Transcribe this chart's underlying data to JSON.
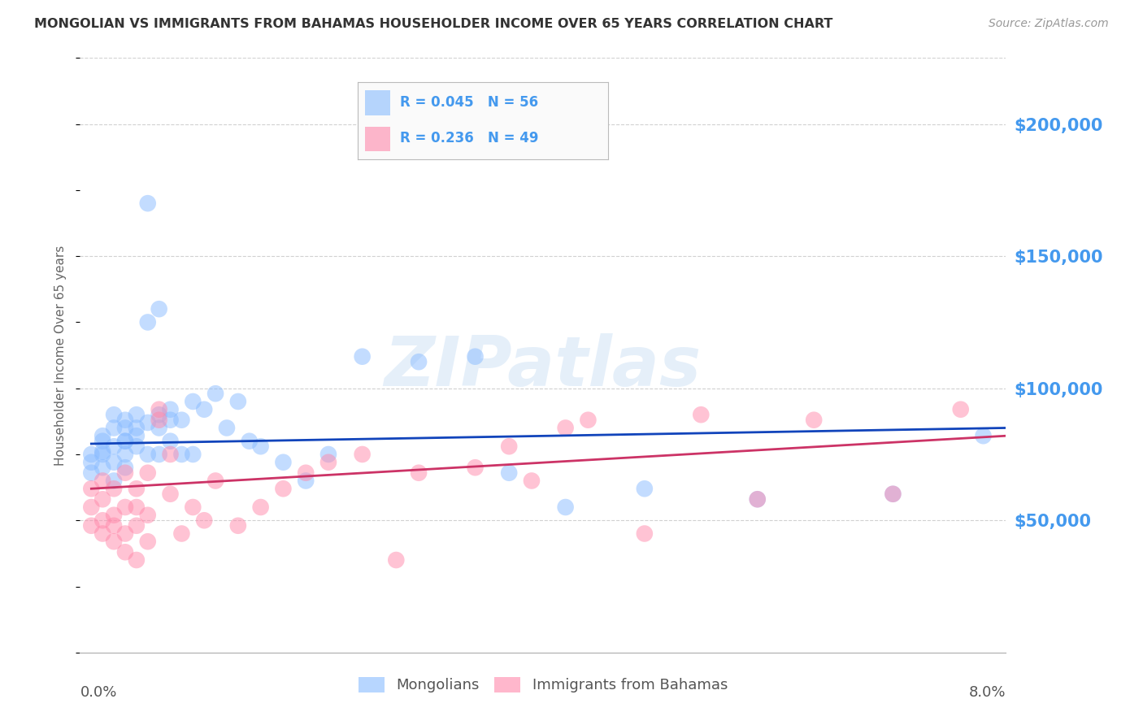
{
  "title": "MONGOLIAN VS IMMIGRANTS FROM BAHAMAS HOUSEHOLDER INCOME OVER 65 YEARS CORRELATION CHART",
  "source": "Source: ZipAtlas.com",
  "ylabel": "Householder Income Over 65 years",
  "legend_mongolian": "Mongolians",
  "legend_bahamas": "Immigrants from Bahamas",
  "R_mongolian": 0.045,
  "N_mongolian": 56,
  "R_bahamas": 0.236,
  "N_bahamas": 49,
  "color_mongolian": "#88BBFF",
  "color_bahamas": "#FF88AA",
  "color_trendline_mongolian": "#1144BB",
  "color_trendline_bahamas": "#CC3366",
  "color_ytick_labels": "#4499EE",
  "ytick_labels": [
    "$50,000",
    "$100,000",
    "$150,000",
    "$200,000"
  ],
  "ytick_values": [
    50000,
    100000,
    150000,
    200000
  ],
  "ylim": [
    0,
    225000
  ],
  "xlim": [
    0.0,
    0.082
  ],
  "mongolian_x": [
    0.001,
    0.001,
    0.001,
    0.002,
    0.002,
    0.002,
    0.002,
    0.002,
    0.003,
    0.003,
    0.003,
    0.003,
    0.003,
    0.004,
    0.004,
    0.004,
    0.004,
    0.004,
    0.004,
    0.005,
    0.005,
    0.005,
    0.005,
    0.006,
    0.006,
    0.006,
    0.006,
    0.007,
    0.007,
    0.007,
    0.007,
    0.008,
    0.008,
    0.008,
    0.009,
    0.009,
    0.01,
    0.01,
    0.011,
    0.012,
    0.013,
    0.014,
    0.015,
    0.016,
    0.018,
    0.02,
    0.022,
    0.025,
    0.03,
    0.035,
    0.038,
    0.043,
    0.05,
    0.06,
    0.072,
    0.08
  ],
  "mongolian_y": [
    75000,
    72000,
    68000,
    80000,
    76000,
    82000,
    70000,
    75000,
    85000,
    78000,
    90000,
    72000,
    65000,
    88000,
    80000,
    85000,
    75000,
    70000,
    80000,
    82000,
    90000,
    78000,
    85000,
    170000,
    125000,
    87000,
    75000,
    130000,
    85000,
    90000,
    75000,
    88000,
    92000,
    80000,
    88000,
    75000,
    95000,
    75000,
    92000,
    98000,
    85000,
    95000,
    80000,
    78000,
    72000,
    65000,
    75000,
    112000,
    110000,
    112000,
    68000,
    55000,
    62000,
    58000,
    60000,
    82000
  ],
  "bahamas_x": [
    0.001,
    0.001,
    0.001,
    0.002,
    0.002,
    0.002,
    0.002,
    0.003,
    0.003,
    0.003,
    0.003,
    0.004,
    0.004,
    0.004,
    0.004,
    0.005,
    0.005,
    0.005,
    0.005,
    0.006,
    0.006,
    0.006,
    0.007,
    0.007,
    0.008,
    0.008,
    0.009,
    0.01,
    0.011,
    0.012,
    0.014,
    0.016,
    0.018,
    0.02,
    0.022,
    0.025,
    0.028,
    0.03,
    0.035,
    0.038,
    0.04,
    0.043,
    0.045,
    0.05,
    0.055,
    0.06,
    0.065,
    0.072,
    0.078
  ],
  "bahamas_y": [
    62000,
    55000,
    48000,
    65000,
    58000,
    45000,
    50000,
    62000,
    52000,
    48000,
    42000,
    68000,
    55000,
    45000,
    38000,
    62000,
    55000,
    48000,
    35000,
    68000,
    52000,
    42000,
    88000,
    92000,
    75000,
    60000,
    45000,
    55000,
    50000,
    65000,
    48000,
    55000,
    62000,
    68000,
    72000,
    75000,
    35000,
    68000,
    70000,
    78000,
    65000,
    85000,
    88000,
    45000,
    90000,
    58000,
    88000,
    60000,
    92000
  ],
  "trendline_mongolian_x0": 0.001,
  "trendline_mongolian_x1": 0.082,
  "trendline_mongolian_y0": 79000,
  "trendline_mongolian_y1": 85000,
  "trendline_bahamas_x0": 0.001,
  "trendline_bahamas_x1": 0.082,
  "trendline_bahamas_y0": 62000,
  "trendline_bahamas_y1": 82000,
  "watermark_text": "ZIPatlas",
  "background_color": "#FFFFFF",
  "grid_color": "#CCCCCC"
}
